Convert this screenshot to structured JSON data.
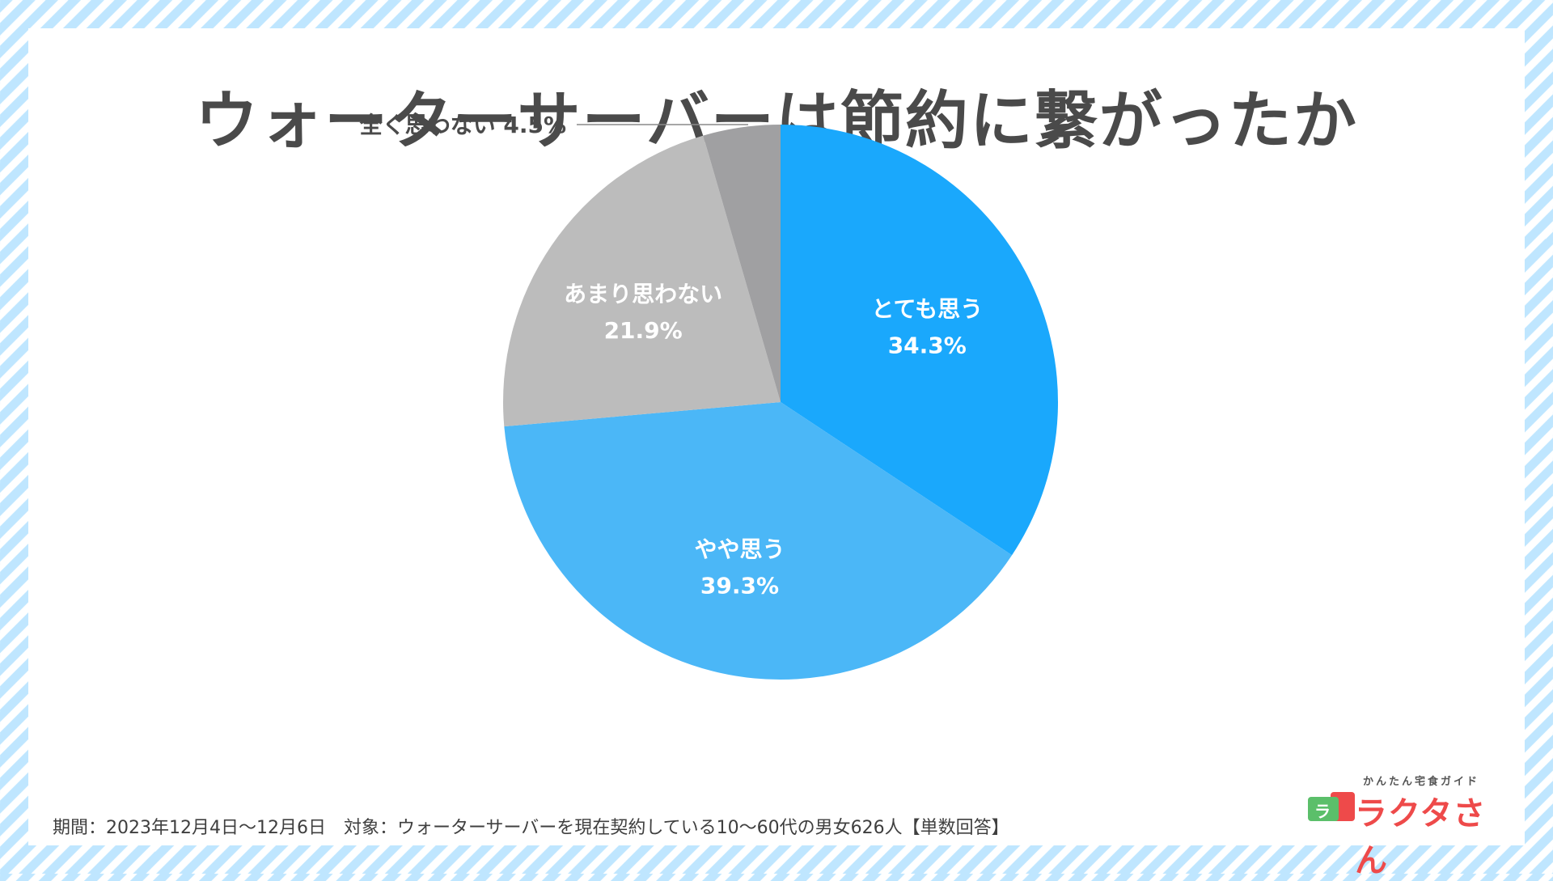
{
  "title": "ウォーターサーバーは節約に繋がったか",
  "note": "期間：2023年12月4日〜12月6日　対象：ウォーターサーバーを現在契約している10〜60代の男女626人【単数回答】",
  "logo": {
    "sub": "かんたん宅食ガイド",
    "main": "ラクタさん",
    "bag_letter": "ラ"
  },
  "chart_data": {
    "type": "pie",
    "title": "ウォーターサーバーは節約に繋がったか",
    "start": "12 o'clock, clockwise",
    "slices": [
      {
        "label": "とても思う",
        "value": 34.3,
        "value_label": "34.3%",
        "color": "#1aa8fc",
        "label_color": "#ffffff",
        "label_position": "inside"
      },
      {
        "label": "やや思う",
        "value": 39.3,
        "value_label": "39.3%",
        "color": "#4bb7f7",
        "label_color": "#ffffff",
        "label_position": "inside"
      },
      {
        "label": "あまり思わない",
        "value": 21.9,
        "value_label": "21.9%",
        "color": "#bcbcbc",
        "label_color": "#ffffff",
        "label_position": "inside"
      },
      {
        "label": "全く思わない",
        "value": 4.5,
        "value_label": "4.5%",
        "color": "#a0a0a2",
        "label_color": "#4a4a4a",
        "label_position": "outside-left"
      }
    ]
  }
}
